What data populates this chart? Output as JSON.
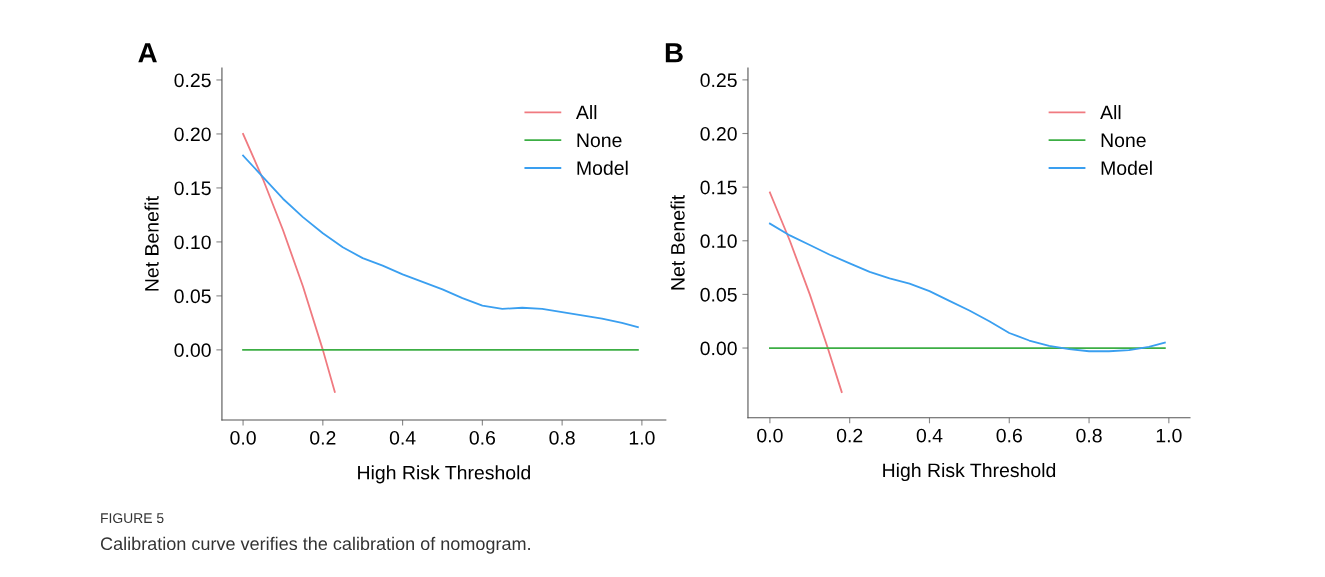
{
  "chart_data": [
    {
      "type": "line",
      "title": "A",
      "xlabel": "High Risk Threshold",
      "ylabel": "Net Benefit",
      "xlim": [
        -0.053,
        1.06
      ],
      "ylim": [
        -0.065,
        0.261
      ],
      "xticks": [
        {
          "value": 0,
          "label": "0.0"
        },
        {
          "value": 0.2,
          "label": "0.2"
        },
        {
          "value": 0.4,
          "label": "0.4"
        },
        {
          "value": 0.6,
          "label": "0.6"
        },
        {
          "value": 0.8,
          "label": "0.8"
        },
        {
          "value": 1,
          "label": "1.0"
        }
      ],
      "yticks": [
        {
          "value": 0,
          "label": "0.00"
        },
        {
          "value": 0.05,
          "label": "0.05"
        },
        {
          "value": 0.1,
          "label": "0.10"
        },
        {
          "value": 0.15,
          "label": "0.15"
        },
        {
          "value": 0.2,
          "label": "0.20"
        },
        {
          "value": 0.25,
          "label": "0.25"
        }
      ],
      "grid": false,
      "legend": "top right",
      "line_style": "solid",
      "marker": "none",
      "series": [
        {
          "name": "All",
          "color": "#f07a80",
          "x": [
            0,
            0.05,
            0.1,
            0.15,
            0.2,
            0.23
          ],
          "values": [
            0.2,
            0.158,
            0.111,
            0.059,
            0,
            -0.039
          ]
        },
        {
          "name": "None",
          "color": "#3cae44",
          "x": [
            0,
            0.99
          ],
          "values": [
            0,
            0
          ]
        },
        {
          "name": "Model",
          "color": "#3a9ff0",
          "x": [
            0,
            0.05,
            0.1,
            0.15,
            0.2,
            0.25,
            0.3,
            0.35,
            0.4,
            0.45,
            0.5,
            0.55,
            0.6,
            0.65,
            0.7,
            0.75,
            0.8,
            0.85,
            0.9,
            0.95,
            0.99
          ],
          "values": [
            0.18,
            0.16,
            0.14,
            0.123,
            0.108,
            0.095,
            0.085,
            0.078,
            0.07,
            0.063,
            0.056,
            0.048,
            0.041,
            0.038,
            0.039,
            0.038,
            0.035,
            0.032,
            0.029,
            0.025,
            0.021
          ]
        }
      ],
      "annotations": [
        "FIGURE 5",
        "Calibration curve verifies the calibration of nomogram."
      ]
    },
    {
      "type": "line",
      "title": "B",
      "xlabel": "High Risk Threshold",
      "ylabel": "Net Benefit",
      "xlim": [
        -0.055,
        1.053
      ],
      "ylim": [
        -0.065,
        0.261
      ],
      "xticks": [
        {
          "value": 0,
          "label": "0.0"
        },
        {
          "value": 0.2,
          "label": "0.2"
        },
        {
          "value": 0.4,
          "label": "0.4"
        },
        {
          "value": 0.6,
          "label": "0.6"
        },
        {
          "value": 0.8,
          "label": "0.8"
        },
        {
          "value": 1,
          "label": "1.0"
        }
      ],
      "yticks": [
        {
          "value": 0,
          "label": "0.00"
        },
        {
          "value": 0.05,
          "label": "0.05"
        },
        {
          "value": 0.1,
          "label": "0.10"
        },
        {
          "value": 0.15,
          "label": "0.15"
        },
        {
          "value": 0.2,
          "label": "0.20"
        },
        {
          "value": 0.25,
          "label": "0.25"
        }
      ],
      "grid": false,
      "legend": "top right",
      "line_style": "solid",
      "marker": "none",
      "series": [
        {
          "name": "All",
          "color": "#f07a80",
          "x": [
            0,
            0.05,
            0.1,
            0.145,
            0.18
          ],
          "values": [
            0.145,
            0.1,
            0.05,
            0,
            -0.041
          ]
        },
        {
          "name": "None",
          "color": "#3cae44",
          "x": [
            0,
            0.99
          ],
          "values": [
            0,
            0
          ]
        },
        {
          "name": "Model",
          "color": "#3a9ff0",
          "x": [
            0,
            0.05,
            0.1,
            0.15,
            0.2,
            0.25,
            0.3,
            0.35,
            0.4,
            0.45,
            0.5,
            0.55,
            0.6,
            0.65,
            0.7,
            0.75,
            0.8,
            0.85,
            0.9,
            0.95,
            0.99
          ],
          "values": [
            0.116,
            0.105,
            0.096,
            0.087,
            0.079,
            0.071,
            0.065,
            0.06,
            0.053,
            0.044,
            0.035,
            0.025,
            0.014,
            0.007,
            0.002,
            -0.001,
            -0.003,
            -0.003,
            -0.002,
            0.001,
            0.005
          ]
        }
      ]
    }
  ]
}
